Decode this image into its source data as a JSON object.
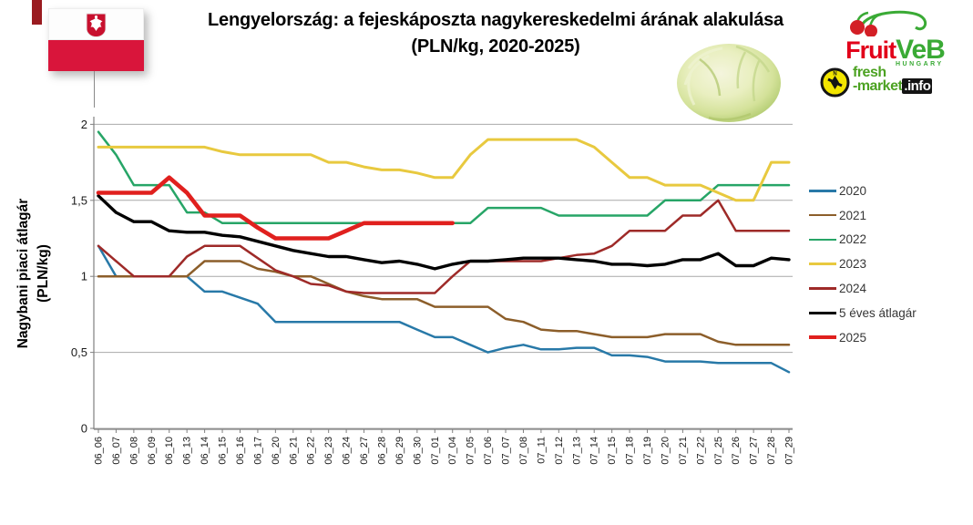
{
  "header": {
    "title_line1": "Lengyelország: a fejeskáposzta nagykereskedelmi árának alakulása",
    "title_line2": "(PLN/kg, 2020-2025)"
  },
  "logos": {
    "fruitveb": {
      "word1": "Fruit",
      "word2": "VeB",
      "sub": "HUNGARY",
      "red": "#e2001a",
      "green": "#3aaa35"
    },
    "freshmarket": {
      "line1": "fresh",
      "line2": "-market",
      "suffix": ".info",
      "green": "#4ca222",
      "yellow": "#f2e500"
    }
  },
  "y_axis": {
    "title_line1": "Nagybani piaci átlagár",
    "title_line2": "(PLN/kg)",
    "tick_labels": [
      "2",
      "1,5",
      "1",
      "0,5",
      "0"
    ],
    "tick_values": [
      2,
      1.5,
      1,
      0.5,
      0
    ]
  },
  "chart_data": {
    "type": "line",
    "title": "Lengyelország: a fejeskáposzta nagykereskedelmi árának alakulása (PLN/kg, 2020-2025)",
    "ylabel": "Nagybani piaci átlagár (PLN/kg)",
    "ylim": [
      0,
      2
    ],
    "grid": true,
    "legend_position": "right",
    "x_labels": [
      "06_06",
      "06_07",
      "06_08",
      "06_09",
      "06_10",
      "06_13",
      "06_14",
      "06_15",
      "06_16",
      "06_17",
      "06_20",
      "06_21",
      "06_22",
      "06_23",
      "06_24",
      "06_27",
      "06_28",
      "06_29",
      "06_30",
      "07_01",
      "07_04",
      "07_05",
      "07_06",
      "07_07",
      "07_08",
      "07_11",
      "07_12",
      "07_13",
      "07_14",
      "07_15",
      "07_18",
      "07_19",
      "07_20",
      "07_21",
      "07_22",
      "07_25",
      "07_26",
      "07_27",
      "07_28",
      "07_29"
    ],
    "series": [
      {
        "name": "2020",
        "color": "#2879a8",
        "width": 2.5,
        "values": [
          1.2,
          1.0,
          1.0,
          1.0,
          1.0,
          1.0,
          0.9,
          0.9,
          0.86,
          0.82,
          0.7,
          0.7,
          0.7,
          0.7,
          0.7,
          0.7,
          0.7,
          0.7,
          0.65,
          0.6,
          0.6,
          0.55,
          0.5,
          0.53,
          0.55,
          0.52,
          0.52,
          0.53,
          0.53,
          0.48,
          0.48,
          0.47,
          0.44,
          0.44,
          0.44,
          0.43,
          0.43,
          0.43,
          0.43,
          0.37
        ]
      },
      {
        "name": "2021",
        "color": "#8c5e2a",
        "width": 2.5,
        "values": [
          1.0,
          1.0,
          1.0,
          1.0,
          1.0,
          1.0,
          1.1,
          1.1,
          1.1,
          1.05,
          1.03,
          1.0,
          1.0,
          0.95,
          0.9,
          0.87,
          0.85,
          0.85,
          0.85,
          0.8,
          0.8,
          0.8,
          0.8,
          0.72,
          0.7,
          0.65,
          0.64,
          0.64,
          0.62,
          0.6,
          0.6,
          0.6,
          0.62,
          0.62,
          0.62,
          0.57,
          0.55,
          0.55,
          0.55,
          0.55
        ]
      },
      {
        "name": "2022",
        "color": "#27a567",
        "width": 2.5,
        "values": [
          1.95,
          1.8,
          1.6,
          1.6,
          1.6,
          1.42,
          1.42,
          1.35,
          1.35,
          1.35,
          1.35,
          1.35,
          1.35,
          1.35,
          1.35,
          1.35,
          1.35,
          1.35,
          1.35,
          1.35,
          1.35,
          1.35,
          1.45,
          1.45,
          1.45,
          1.45,
          1.4,
          1.4,
          1.4,
          1.4,
          1.4,
          1.4,
          1.5,
          1.5,
          1.5,
          1.6,
          1.6,
          1.6,
          1.6,
          1.6
        ]
      },
      {
        "name": "2023",
        "color": "#e8c93f",
        "width": 3,
        "values": [
          1.85,
          1.85,
          1.85,
          1.85,
          1.85,
          1.85,
          1.85,
          1.82,
          1.8,
          1.8,
          1.8,
          1.8,
          1.8,
          1.75,
          1.75,
          1.72,
          1.7,
          1.7,
          1.68,
          1.65,
          1.65,
          1.8,
          1.9,
          1.9,
          1.9,
          1.9,
          1.9,
          1.9,
          1.85,
          1.75,
          1.65,
          1.65,
          1.6,
          1.6,
          1.6,
          1.55,
          1.5,
          1.5,
          1.75,
          1.75
        ]
      },
      {
        "name": "2024",
        "color": "#9e2a28",
        "width": 2.5,
        "values": [
          1.2,
          1.1,
          1.0,
          1.0,
          1.0,
          1.13,
          1.2,
          1.2,
          1.2,
          1.12,
          1.04,
          1.0,
          0.95,
          0.94,
          0.9,
          0.89,
          0.89,
          0.89,
          0.89,
          0.89,
          1.0,
          1.1,
          1.1,
          1.1,
          1.1,
          1.1,
          1.12,
          1.14,
          1.15,
          1.2,
          1.3,
          1.3,
          1.3,
          1.4,
          1.4,
          1.5,
          1.3,
          1.3,
          1.3,
          1.3
        ]
      },
      {
        "name": "5 éves átlagár",
        "color": "#000000",
        "width": 3.4,
        "values": [
          1.53,
          1.42,
          1.36,
          1.36,
          1.3,
          1.29,
          1.29,
          1.27,
          1.26,
          1.23,
          1.2,
          1.17,
          1.15,
          1.13,
          1.13,
          1.11,
          1.09,
          1.1,
          1.08,
          1.05,
          1.08,
          1.1,
          1.1,
          1.11,
          1.12,
          1.12,
          1.12,
          1.11,
          1.1,
          1.08,
          1.08,
          1.07,
          1.08,
          1.11,
          1.11,
          1.15,
          1.07,
          1.07,
          1.12,
          1.11
        ]
      },
      {
        "name": "2025",
        "color": "#e0201e",
        "width": 4.6,
        "values": [
          1.55,
          1.55,
          1.55,
          1.55,
          1.65,
          1.55,
          1.4,
          1.4,
          1.4,
          1.32,
          1.25,
          1.25,
          1.25,
          1.25,
          1.3,
          1.35,
          1.35,
          1.35,
          1.35,
          1.35,
          1.35
        ]
      }
    ]
  }
}
